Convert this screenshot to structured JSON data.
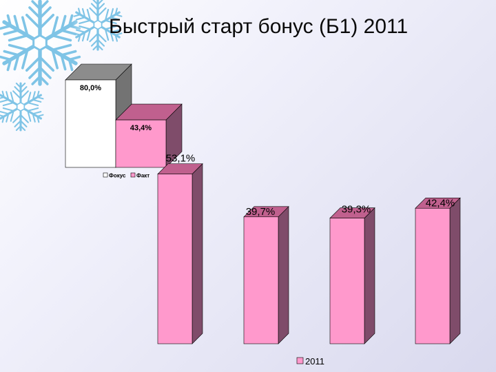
{
  "slide_title": "Быстрый старт бонус (Б1) 2011",
  "colors": {
    "fact_front": "#ff99cc",
    "fact_top": "#c0608e",
    "fact_side": "#7f4c6a",
    "focus_front": "#ffffff",
    "focus_top": "#8c8c8c",
    "focus_side": "#737373",
    "snowflake": "#7fc4e6"
  },
  "icons": [
    "snowflake-icon"
  ],
  "chart_data": [
    {
      "type": "bar",
      "categories": [
        "Фокус",
        "Факт"
      ],
      "values": [
        80.0,
        43.4
      ],
      "labels": [
        "80,0%",
        "43,4%"
      ],
      "legend": [
        "Фокус",
        "Факт"
      ],
      "legend_position": "bottom",
      "grid": false,
      "ylim": [
        0,
        100
      ],
      "style": "3d-column"
    },
    {
      "type": "bar",
      "series": [
        {
          "name": "2011",
          "values": [
            53.1,
            39.7,
            39.3,
            42.4
          ]
        }
      ],
      "labels": [
        "53,1%",
        "39,7%",
        "39,3%",
        "42,4%"
      ],
      "legend": [
        "2011"
      ],
      "legend_position": "bottom",
      "grid": false,
      "ylim": [
        0,
        54
      ],
      "style": "3d-column"
    }
  ]
}
